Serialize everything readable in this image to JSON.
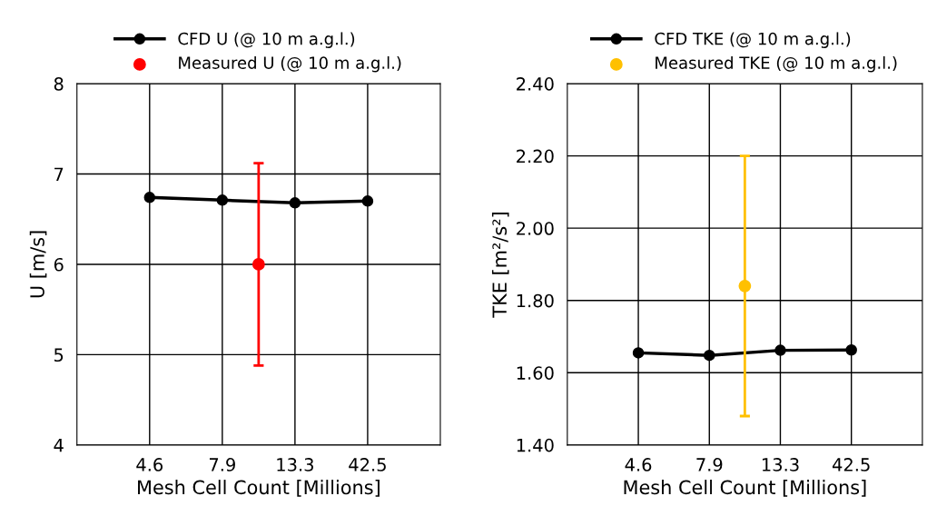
{
  "chart_data": [
    {
      "type": "line",
      "xlabel": "Mesh Cell Count [Millions]",
      "ylabel": "U [m/s]",
      "categories": [
        "4.6",
        null,
        "7.9",
        null,
        "13.3",
        null,
        "42.5"
      ],
      "ylim": [
        4,
        8
      ],
      "yticks": [
        4,
        5,
        6,
        7,
        8
      ],
      "grid": true,
      "legend": "top",
      "marker": "circle",
      "series": [
        {
          "name": "CFD U (@ 10 m a.g.l.)",
          "color": "#000000",
          "x": [
            "4.6",
            "7.9",
            "13.3",
            "42.5"
          ],
          "values": [
            6.74,
            6.71,
            6.68,
            6.7
          ]
        },
        {
          "name": "Measured U (@ 10 m a.g.l.)",
          "type": "scatter",
          "color": "#ff0000",
          "values": [
            null,
            null,
            null,
            6.0,
            null,
            null,
            null
          ],
          "errors": [
            null,
            null,
            null,
            [
              4.88,
              7.12
            ],
            null,
            null,
            null
          ]
        }
      ]
    },
    {
      "type": "line",
      "xlabel": "Mesh Cell Count [Millions]",
      "ylabel": "TKE [m²/s²]",
      "categories": [
        "4.6",
        null,
        "7.9",
        null,
        "13.3",
        null,
        "42.5"
      ],
      "ylim": [
        1.4,
        2.4
      ],
      "yticks": [
        {
          "value": 1.4,
          "label": "1.40"
        },
        {
          "value": 1.6,
          "label": "1.60"
        },
        {
          "value": 1.8,
          "label": "1.80"
        },
        {
          "value": 2.0,
          "label": "2.00"
        },
        {
          "value": 2.2,
          "label": "2.20"
        },
        {
          "value": 2.4,
          "label": "2.40"
        }
      ],
      "grid": true,
      "legend": "top",
      "marker": "circle",
      "series": [
        {
          "name": "CFD TKE (@ 10 m a.g.l.)",
          "color": "#000000",
          "x": [
            "4.6",
            "7.9",
            "13.3",
            "42.5"
          ],
          "values": [
            1.655,
            1.648,
            1.662,
            1.663
          ]
        },
        {
          "name": "Measured TKE (@ 10 m a.g.l.)",
          "type": "scatter",
          "color": "#ffc000",
          "values": [
            null,
            null,
            null,
            1.84,
            null,
            null,
            null
          ],
          "errors": [
            null,
            null,
            null,
            [
              1.48,
              2.2
            ],
            null,
            null,
            null
          ]
        }
      ]
    }
  ]
}
